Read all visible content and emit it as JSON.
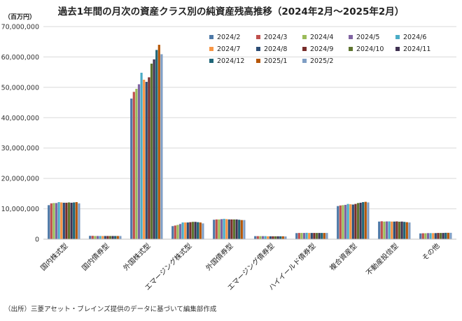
{
  "chart_data": {
    "type": "bar",
    "title": "過去1年間の月次の資産クラス別の純資産残高推移（2024年2月～2025年2月）",
    "ylabel": "（百万円）",
    "xlabel": "",
    "ylim": [
      0,
      70000000
    ],
    "yticks": [
      0,
      10000000,
      20000000,
      30000000,
      40000000,
      50000000,
      60000000,
      70000000
    ],
    "ytick_labels": [
      "0",
      "10,000,000",
      "20,000,000",
      "30,000,000",
      "40,000,000",
      "50,000,000",
      "60,000,000",
      "70,000,000"
    ],
    "grid": true,
    "legend_position": "top-right",
    "categories": [
      "国内株式型",
      "国内債券型",
      "外国株式型",
      "エマージング株式型",
      "外国債券型",
      "エマージング債券型",
      "ハイイールド債券型",
      "複合資産型",
      "不動産投信型",
      "その他"
    ],
    "series": [
      {
        "name": "2024/2",
        "color": "#4e79a7",
        "values": [
          11200000,
          1100000,
          46300000,
          4300000,
          6400000,
          1000000,
          2000000,
          10900000,
          5800000,
          1900000
        ]
      },
      {
        "name": "2024/3",
        "color": "#c0504d",
        "values": [
          11800000,
          1100000,
          48500000,
          4500000,
          6500000,
          1000000,
          2050000,
          11100000,
          5900000,
          1950000
        ]
      },
      {
        "name": "2024/4",
        "color": "#9bbb59",
        "values": [
          11900000,
          1050000,
          49500000,
          4700000,
          6500000,
          1000000,
          2050000,
          11200000,
          5800000,
          1950000
        ]
      },
      {
        "name": "2024/5",
        "color": "#8064a2",
        "values": [
          11900000,
          1050000,
          51000000,
          5000000,
          6600000,
          1000000,
          2050000,
          11300000,
          5850000,
          2000000
        ]
      },
      {
        "name": "2024/6",
        "color": "#4bacc6",
        "values": [
          12200000,
          1050000,
          54800000,
          5500000,
          6700000,
          1000000,
          2100000,
          11600000,
          5850000,
          2000000
        ]
      },
      {
        "name": "2024/7",
        "color": "#f79646",
        "values": [
          12100000,
          1050000,
          52500000,
          5500000,
          6600000,
          950000,
          2050000,
          11500000,
          5800000,
          2000000
        ]
      },
      {
        "name": "2024/8",
        "color": "#2c4d75",
        "values": [
          12000000,
          1050000,
          51800000,
          5500000,
          6500000,
          950000,
          2050000,
          11400000,
          5800000,
          2000000
        ]
      },
      {
        "name": "2024/9",
        "color": "#772c2a",
        "values": [
          12000000,
          1050000,
          53300000,
          5600000,
          6500000,
          950000,
          2050000,
          11600000,
          5850000,
          2050000
        ]
      },
      {
        "name": "2024/10",
        "color": "#5f7530",
        "values": [
          12100000,
          1050000,
          57800000,
          5700000,
          6500000,
          950000,
          2050000,
          11900000,
          5750000,
          2050000
        ]
      },
      {
        "name": "2024/11",
        "color": "#3f3151",
        "values": [
          12000000,
          1050000,
          59200000,
          5700000,
          6500000,
          950000,
          2050000,
          12000000,
          5800000,
          2050000
        ]
      },
      {
        "name": "2024/12",
        "color": "#1f6678",
        "values": [
          12100000,
          1050000,
          62300000,
          5600000,
          6400000,
          950000,
          2050000,
          12200000,
          5700000,
          2100000
        ]
      },
      {
        "name": "2025/1",
        "color": "#b65708",
        "values": [
          12200000,
          1050000,
          64000000,
          5500000,
          6300000,
          950000,
          2050000,
          12300000,
          5600000,
          2100000
        ]
      },
      {
        "name": "2025/2",
        "color": "#7f9ec4",
        "values": [
          11800000,
          1050000,
          60900000,
          5200000,
          6300000,
          900000,
          2050000,
          12100000,
          5500000,
          2100000
        ]
      }
    ]
  },
  "source_note": "（出所）三菱アセット・ブレインズ提供のデータに基づいて編集部作成"
}
